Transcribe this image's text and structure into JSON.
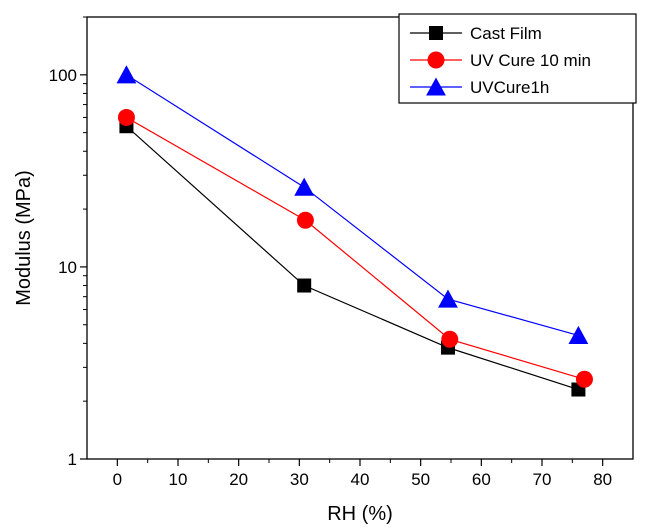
{
  "chart_data": {
    "type": "line",
    "xlabel": "RH (%)",
    "ylabel": "Modulus (MPa)",
    "x_scale": "linear",
    "y_scale": "log",
    "xlim": [
      -5,
      85
    ],
    "ylim": [
      1,
      200
    ],
    "x_ticks": [
      0,
      10,
      20,
      30,
      40,
      50,
      60,
      70,
      80
    ],
    "y_ticks": [
      1,
      10,
      100
    ],
    "grid": false,
    "legend_position": "top-right",
    "series": [
      {
        "name": "Cast Film",
        "marker": "square",
        "color": "#000000",
        "x": [
          1.5,
          30.8,
          54.5,
          76
        ],
        "y": [
          54,
          8,
          3.8,
          2.3
        ]
      },
      {
        "name": "UV Cure 10 min",
        "marker": "circle",
        "color": "#ff0000",
        "x": [
          1.5,
          31,
          54.8,
          77
        ],
        "y": [
          60,
          17.5,
          4.2,
          2.6
        ]
      },
      {
        "name": "UVCure1h",
        "marker": "triangle",
        "color": "#0000ff",
        "x": [
          1.5,
          30.8,
          54.5,
          76
        ],
        "y": [
          100,
          26,
          6.8,
          4.4
        ]
      }
    ]
  }
}
